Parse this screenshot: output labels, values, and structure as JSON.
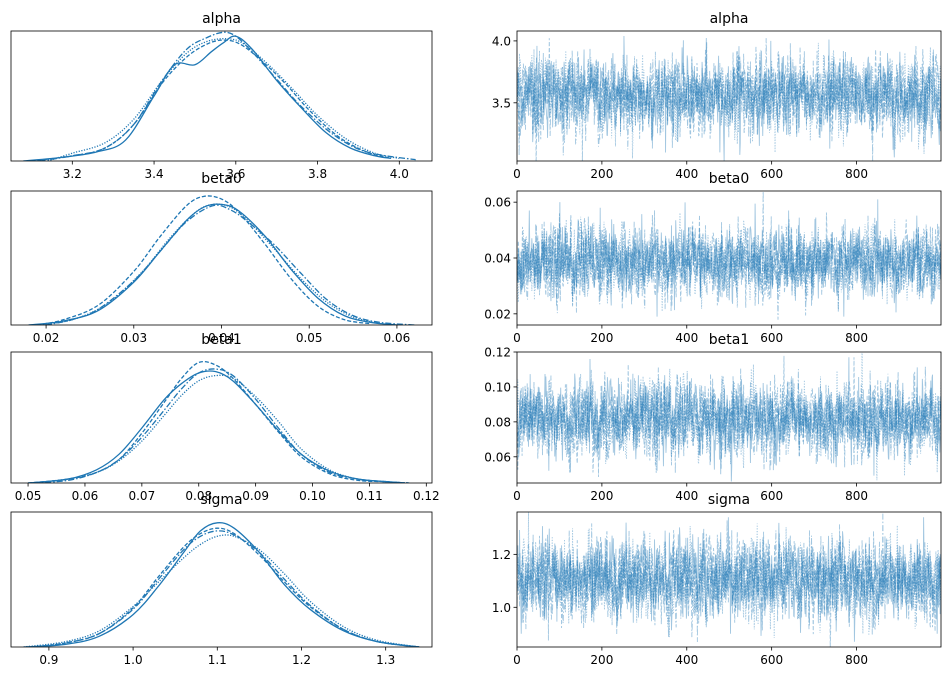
{
  "figure": {
    "type": "arviz-trace-plot",
    "line_color": "#1f77b4"
  },
  "chart_data": [
    {
      "type": "line",
      "kind": "density",
      "title": "alpha",
      "xlim": [
        3.05,
        4.08
      ],
      "ylim": [
        0,
        1
      ],
      "xticks": [
        3.2,
        3.4,
        3.6,
        3.8,
        4.0
      ],
      "xtick_labels": [
        "3.2",
        "3.4",
        "3.6",
        "3.8",
        "4.0"
      ],
      "series": [
        {
          "line_style": "solid",
          "x": [
            3.08,
            3.18,
            3.26,
            3.33,
            3.4,
            3.45,
            3.5,
            3.54,
            3.57,
            3.6,
            3.64,
            3.7,
            3.76,
            3.82,
            3.88,
            3.94,
            3.98
          ],
          "y": [
            0.0,
            0.03,
            0.07,
            0.16,
            0.5,
            0.74,
            0.74,
            0.84,
            0.91,
            0.96,
            0.86,
            0.62,
            0.41,
            0.22,
            0.1,
            0.04,
            0.02
          ]
        },
        {
          "line_style": "dashed",
          "x": [
            3.1,
            3.2,
            3.28,
            3.35,
            3.42,
            3.48,
            3.53,
            3.57,
            3.61,
            3.66,
            3.72,
            3.78,
            3.85,
            3.92,
            3.98
          ],
          "y": [
            0.0,
            0.04,
            0.1,
            0.28,
            0.6,
            0.8,
            0.9,
            0.93,
            0.9,
            0.78,
            0.6,
            0.39,
            0.19,
            0.07,
            0.02
          ]
        },
        {
          "line_style": "dashdot",
          "x": [
            3.12,
            3.2,
            3.28,
            3.35,
            3.42,
            3.48,
            3.53,
            3.57,
            3.6,
            3.64,
            3.7,
            3.76,
            3.84,
            3.92,
            4.04
          ],
          "y": [
            0.0,
            0.04,
            0.1,
            0.28,
            0.62,
            0.86,
            0.95,
            0.99,
            0.96,
            0.84,
            0.63,
            0.42,
            0.2,
            0.07,
            0.01
          ]
        },
        {
          "line_style": "dotted",
          "x": [
            3.14,
            3.2,
            3.28,
            3.35,
            3.42,
            3.48,
            3.53,
            3.58,
            3.62,
            3.68,
            3.74,
            3.8,
            3.87,
            3.94,
            4.0
          ],
          "y": [
            0.0,
            0.06,
            0.14,
            0.32,
            0.62,
            0.83,
            0.92,
            0.94,
            0.9,
            0.74,
            0.55,
            0.35,
            0.17,
            0.06,
            0.02
          ]
        }
      ]
    },
    {
      "type": "line",
      "kind": "trace",
      "title": "alpha",
      "xlim": [
        0,
        999
      ],
      "ylim": [
        3.03,
        4.08
      ],
      "xticks": [
        0,
        200,
        400,
        600,
        800
      ],
      "xtick_labels": [
        "0",
        "200",
        "400",
        "600",
        "800"
      ],
      "yticks": [
        3.5,
        4.0
      ],
      "ytick_labels": [
        "3.5",
        "4.0"
      ],
      "draws_per_chain": 1000,
      "series_count": 4,
      "center": 3.56,
      "spread": 0.15,
      "spikes": [
        [
          252,
          4.04
        ],
        [
          478,
          3.1
        ],
        [
          598,
          4.0
        ],
        [
          737,
          3.13
        ],
        [
          886,
          3.12
        ],
        [
          47,
          3.96
        ]
      ]
    },
    {
      "type": "line",
      "kind": "density",
      "title": "beta0",
      "xlim": [
        0.016,
        0.064
      ],
      "ylim": [
        0,
        1
      ],
      "xticks": [
        0.02,
        0.03,
        0.04,
        0.05,
        0.06
      ],
      "xtick_labels": [
        "0.02",
        "0.03",
        "0.04",
        "0.05",
        "0.06"
      ],
      "series": [
        {
          "line_style": "solid",
          "x": [
            0.018,
            0.022,
            0.026,
            0.03,
            0.033,
            0.036,
            0.038,
            0.04,
            0.042,
            0.045,
            0.048,
            0.051,
            0.054,
            0.057,
            0.06
          ],
          "y": [
            0.0,
            0.03,
            0.11,
            0.32,
            0.55,
            0.78,
            0.88,
            0.9,
            0.85,
            0.66,
            0.41,
            0.2,
            0.07,
            0.02,
            0.0
          ]
        },
        {
          "line_style": "dashed",
          "x": [
            0.019,
            0.022,
            0.026,
            0.03,
            0.033,
            0.036,
            0.038,
            0.04,
            0.042,
            0.045,
            0.048,
            0.051,
            0.054,
            0.057
          ],
          "y": [
            0.0,
            0.04,
            0.15,
            0.4,
            0.66,
            0.89,
            0.96,
            0.94,
            0.84,
            0.6,
            0.34,
            0.14,
            0.04,
            0.01
          ]
        },
        {
          "line_style": "dashdot",
          "x": [
            0.02,
            0.023,
            0.026,
            0.03,
            0.033,
            0.036,
            0.039,
            0.041,
            0.043,
            0.046,
            0.049,
            0.052,
            0.055,
            0.058,
            0.062
          ],
          "y": [
            0.0,
            0.04,
            0.12,
            0.33,
            0.55,
            0.77,
            0.89,
            0.86,
            0.77,
            0.6,
            0.39,
            0.19,
            0.07,
            0.02,
            0.0
          ]
        },
        {
          "line_style": "dotted",
          "x": [
            0.019,
            0.023,
            0.027,
            0.031,
            0.034,
            0.037,
            0.039,
            0.041,
            0.043,
            0.046,
            0.049,
            0.052,
            0.055,
            0.058
          ],
          "y": [
            0.0,
            0.04,
            0.16,
            0.4,
            0.64,
            0.84,
            0.9,
            0.88,
            0.78,
            0.57,
            0.35,
            0.17,
            0.06,
            0.01
          ]
        }
      ]
    },
    {
      "type": "line",
      "kind": "trace",
      "title": "beta0",
      "xlim": [
        0,
        999
      ],
      "ylim": [
        0.016,
        0.064
      ],
      "xticks": [
        0,
        200,
        400,
        600,
        800
      ],
      "xtick_labels": [
        "0",
        "200",
        "400",
        "600",
        "800"
      ],
      "yticks": [
        0.02,
        0.04,
        0.06
      ],
      "ytick_labels": [
        "0.02",
        "0.04",
        "0.06"
      ],
      "draws_per_chain": 1000,
      "series_count": 4,
      "center": 0.0385,
      "spread": 0.0062,
      "spikes": [
        [
          850,
          0.061
        ],
        [
          101,
          0.06
        ],
        [
          196,
          0.058
        ],
        [
          330,
          0.019
        ],
        [
          770,
          0.019
        ],
        [
          640,
          0.057
        ]
      ]
    },
    {
      "type": "line",
      "kind": "density",
      "title": "beta1",
      "xlim": [
        0.047,
        0.121
      ],
      "ylim": [
        0,
        1
      ],
      "xticks": [
        0.05,
        0.06,
        0.07,
        0.08,
        0.09,
        0.1,
        0.11,
        0.12
      ],
      "xtick_labels": [
        "0.05",
        "0.06",
        "0.07",
        "0.08",
        "0.09",
        "0.10",
        "0.11",
        "0.12"
      ],
      "series": [
        {
          "line_style": "solid",
          "x": [
            0.05,
            0.057,
            0.062,
            0.066,
            0.07,
            0.074,
            0.077,
            0.08,
            0.083,
            0.086,
            0.09,
            0.094,
            0.098,
            0.103,
            0.108,
            0.113,
            0.116
          ],
          "y": [
            0.0,
            0.03,
            0.1,
            0.22,
            0.42,
            0.64,
            0.76,
            0.84,
            0.85,
            0.78,
            0.6,
            0.4,
            0.22,
            0.09,
            0.03,
            0.01,
            0.0
          ]
        },
        {
          "line_style": "dashed",
          "x": [
            0.05,
            0.057,
            0.062,
            0.066,
            0.07,
            0.074,
            0.077,
            0.08,
            0.083,
            0.086,
            0.09,
            0.094,
            0.098,
            0.103,
            0.108,
            0.113,
            0.116
          ],
          "y": [
            0.0,
            0.03,
            0.08,
            0.18,
            0.38,
            0.62,
            0.8,
            0.92,
            0.9,
            0.8,
            0.6,
            0.39,
            0.2,
            0.07,
            0.02,
            0.01,
            0.0
          ]
        },
        {
          "line_style": "dashdot",
          "x": [
            0.051,
            0.057,
            0.062,
            0.066,
            0.07,
            0.074,
            0.077,
            0.08,
            0.083,
            0.086,
            0.09,
            0.094,
            0.098,
            0.103,
            0.108,
            0.113,
            0.117
          ],
          "y": [
            0.0,
            0.02,
            0.08,
            0.18,
            0.35,
            0.56,
            0.72,
            0.84,
            0.87,
            0.82,
            0.64,
            0.42,
            0.22,
            0.08,
            0.03,
            0.01,
            0.0
          ]
        },
        {
          "line_style": "dotted",
          "x": [
            0.051,
            0.057,
            0.062,
            0.066,
            0.07,
            0.074,
            0.077,
            0.08,
            0.083,
            0.086,
            0.09,
            0.094,
            0.098,
            0.103,
            0.108,
            0.113,
            0.117
          ],
          "y": [
            0.0,
            0.03,
            0.08,
            0.17,
            0.32,
            0.52,
            0.67,
            0.78,
            0.82,
            0.8,
            0.66,
            0.47,
            0.26,
            0.1,
            0.03,
            0.01,
            0.0
          ]
        }
      ]
    },
    {
      "type": "line",
      "kind": "trace",
      "title": "beta1",
      "xlim": [
        0,
        999
      ],
      "ylim": [
        0.045,
        0.12
      ],
      "xticks": [
        0,
        200,
        400,
        600,
        800
      ],
      "xtick_labels": [
        "0",
        "200",
        "400",
        "600",
        "800"
      ],
      "yticks": [
        0.06,
        0.08,
        0.1,
        0.12
      ],
      "ytick_labels": [
        "0.06",
        "0.08",
        "0.10",
        "0.12"
      ],
      "draws_per_chain": 1000,
      "series_count": 4,
      "center": 0.0815,
      "spread": 0.0105,
      "spikes": [
        [
          172,
          0.116
        ],
        [
          782,
          0.117
        ],
        [
          480,
          0.05
        ],
        [
          75,
          0.052
        ],
        [
          650,
          0.105
        ],
        [
          330,
          0.052
        ]
      ]
    },
    {
      "type": "line",
      "kind": "density",
      "title": "sigma",
      "xlim": [
        0.855,
        1.355
      ],
      "ylim": [
        0,
        1
      ],
      "xticks": [
        0.9,
        1.0,
        1.1,
        1.2,
        1.3
      ],
      "xtick_labels": [
        "0.9",
        "1.0",
        "1.1",
        "1.2",
        "1.3"
      ],
      "series": [
        {
          "line_style": "solid",
          "x": [
            0.87,
            0.92,
            0.96,
            1.0,
            1.03,
            1.06,
            1.08,
            1.1,
            1.12,
            1.15,
            1.18,
            1.21,
            1.25,
            1.29,
            1.34
          ],
          "y": [
            0.0,
            0.02,
            0.08,
            0.24,
            0.45,
            0.7,
            0.86,
            0.92,
            0.88,
            0.7,
            0.46,
            0.28,
            0.12,
            0.04,
            0.0
          ]
        },
        {
          "line_style": "dashed",
          "x": [
            0.88,
            0.92,
            0.96,
            1.0,
            1.03,
            1.06,
            1.08,
            1.1,
            1.12,
            1.15,
            1.18,
            1.21,
            1.25,
            1.29,
            1.34
          ],
          "y": [
            0.0,
            0.03,
            0.1,
            0.29,
            0.52,
            0.74,
            0.84,
            0.88,
            0.84,
            0.68,
            0.48,
            0.3,
            0.13,
            0.04,
            0.0
          ]
        },
        {
          "line_style": "dashdot",
          "x": [
            0.88,
            0.92,
            0.96,
            1.0,
            1.03,
            1.06,
            1.08,
            1.1,
            1.12,
            1.15,
            1.18,
            1.21,
            1.25,
            1.29,
            1.34
          ],
          "y": [
            0.0,
            0.03,
            0.1,
            0.28,
            0.5,
            0.72,
            0.82,
            0.86,
            0.83,
            0.7,
            0.5,
            0.31,
            0.13,
            0.04,
            0.0
          ]
        },
        {
          "line_style": "dotted",
          "x": [
            0.87,
            0.92,
            0.96,
            1.0,
            1.03,
            1.06,
            1.08,
            1.1,
            1.12,
            1.15,
            1.18,
            1.21,
            1.25,
            1.29,
            1.34
          ],
          "y": [
            0.0,
            0.04,
            0.12,
            0.3,
            0.48,
            0.66,
            0.76,
            0.82,
            0.82,
            0.72,
            0.54,
            0.34,
            0.15,
            0.05,
            0.0
          ]
        }
      ]
    },
    {
      "type": "line",
      "kind": "trace",
      "title": "sigma",
      "xlim": [
        0,
        999
      ],
      "ylim": [
        0.85,
        1.36
      ],
      "xticks": [
        0,
        200,
        400,
        600,
        800
      ],
      "xtick_labels": [
        "0",
        "200",
        "400",
        "600",
        "800"
      ],
      "yticks": [
        1.0,
        1.2
      ],
      "ytick_labels": [
        "1.0",
        "1.2"
      ],
      "draws_per_chain": 1000,
      "series_count": 4,
      "center": 1.105,
      "spread": 0.075,
      "spikes": [
        [
          498,
          1.34
        ],
        [
          958,
          1.34
        ],
        [
          257,
          1.32
        ],
        [
          795,
          0.87
        ],
        [
          503,
          0.9
        ],
        [
          10,
          0.9
        ]
      ]
    }
  ]
}
